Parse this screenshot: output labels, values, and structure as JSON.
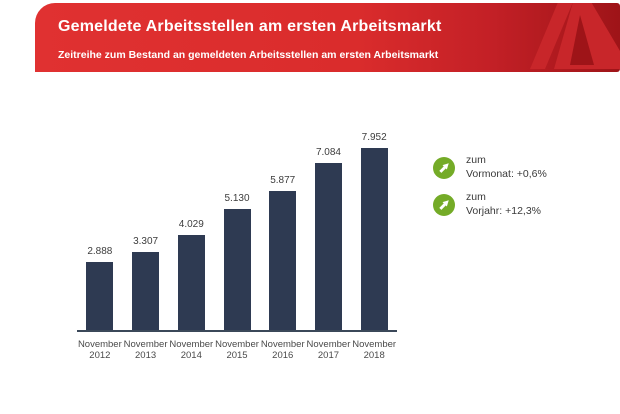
{
  "header": {
    "title": "Gemeldete Arbeitsstellen am ersten Arbeitsmarkt",
    "subtitle": "Zeitreihe zum Bestand an gemeldeten Arbeitsstellen am ersten Arbeitsmarkt",
    "logo": "bundesagentur-fuer-arbeit-a-logo",
    "colors": {
      "banner_red_left": "#e03131",
      "banner_red_right": "#9e1418",
      "logo_red": "#c8262a",
      "text": "#ffffff"
    }
  },
  "chart_data": {
    "type": "bar",
    "title": "Gemeldete Arbeitsstellen am ersten Arbeitsmarkt",
    "categories": [
      "November 2012",
      "November 2013",
      "November 2014",
      "November 2015",
      "November 2016",
      "November 2017",
      "November 2018"
    ],
    "values": [
      2888,
      3307,
      4029,
      5130,
      5877,
      7084,
      7952
    ],
    "value_labels": [
      "2.888",
      "3.307",
      "4.029",
      "5.130",
      "5.877",
      "7.084",
      "7.952"
    ],
    "xlabel": "",
    "ylabel": "",
    "ylim": [
      0,
      8400
    ],
    "grid": false,
    "legend": false,
    "bar_color": "#2e3a52",
    "axis_color": "#3b4859"
  },
  "annotations": {
    "items": [
      {
        "icon": "trend-up-arrow-icon",
        "icon_color": "#74ab27",
        "line1": "zum",
        "line2": "Vormonat: +0,6%"
      },
      {
        "icon": "trend-up-arrow-icon",
        "icon_color": "#74ab27",
        "line1": "zum",
        "line2": "Vorjahr: +12,3%"
      }
    ]
  }
}
